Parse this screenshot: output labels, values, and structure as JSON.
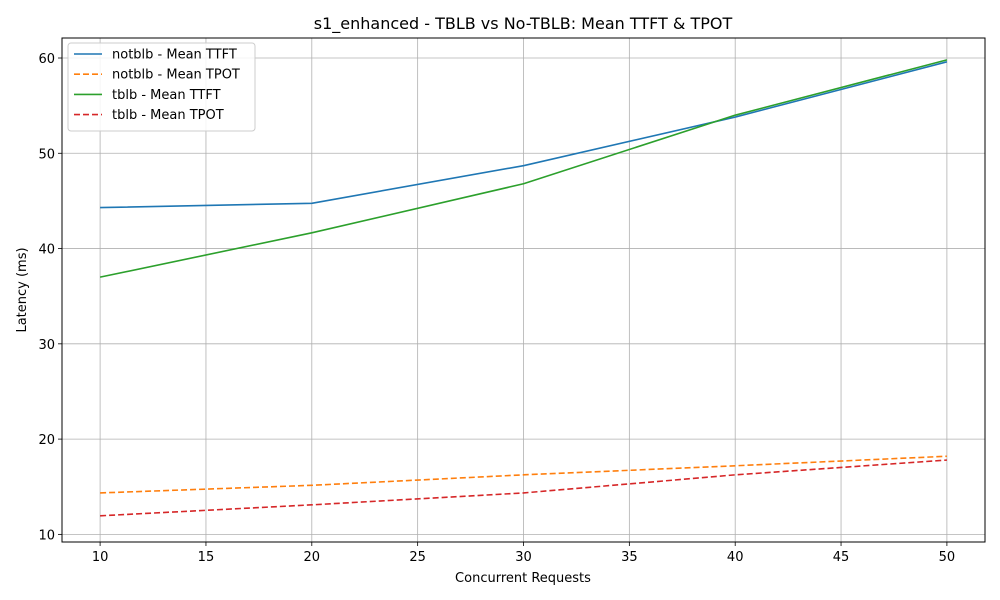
{
  "chart_data": {
    "type": "line",
    "title": "s1_enhanced - TBLB vs No-TBLB: Mean TTFT & TPOT",
    "xlabel": "Concurrent Requests",
    "ylabel": "Latency (ms)",
    "xlim": [
      8.2,
      51.8
    ],
    "ylim": [
      9.2,
      62.1
    ],
    "xticks": [
      10,
      15,
      20,
      25,
      30,
      35,
      40,
      45,
      50
    ],
    "yticks": [
      10,
      20,
      30,
      40,
      50,
      60
    ],
    "grid": true,
    "legend_position": "top-left",
    "x": [
      10,
      20,
      30,
      40,
      50
    ],
    "series": [
      {
        "name": "notblb - Mean TTFT",
        "values": [
          44.3,
          44.75,
          48.7,
          53.8,
          59.6
        ],
        "color": "#1f77b4",
        "dash": "solid"
      },
      {
        "name": "notblb - Mean TPOT",
        "values": [
          14.35,
          15.15,
          16.25,
          17.2,
          18.2
        ],
        "color": "#ff7f0e",
        "dash": "dashed"
      },
      {
        "name": "tblb - Mean TTFT",
        "values": [
          37.0,
          41.65,
          46.8,
          54.0,
          59.8
        ],
        "color": "#2ca02c",
        "dash": "solid"
      },
      {
        "name": "tblb - Mean TPOT",
        "values": [
          11.95,
          13.1,
          14.35,
          16.25,
          17.8
        ],
        "color": "#d62728",
        "dash": "dashed"
      }
    ]
  }
}
